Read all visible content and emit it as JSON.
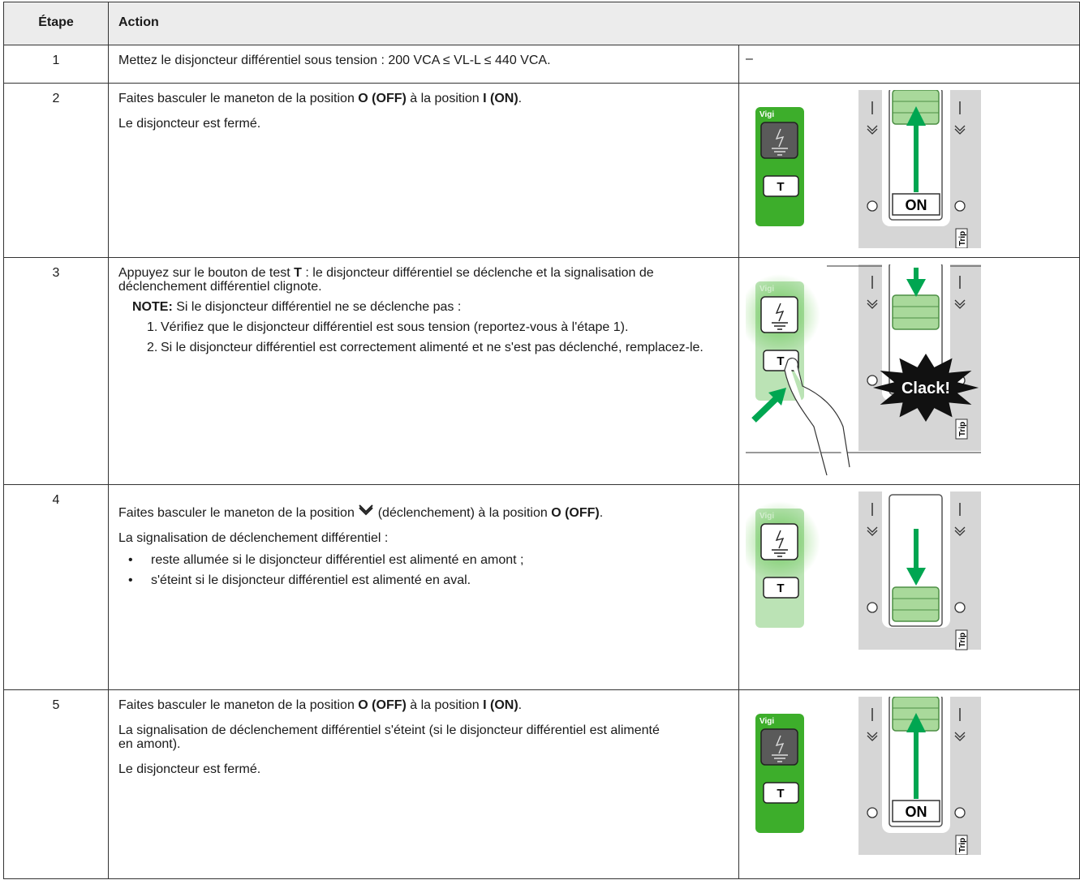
{
  "header": {
    "step": "Étape",
    "action": "Action"
  },
  "rows": [
    {
      "step": "1",
      "paragraphs": [
        [
          "Mettez le disjoncteur différentiel sous tension : 200 VCA ≤  VL-L ≤  440 VCA."
        ]
      ],
      "figure": {
        "text": "–"
      }
    },
    {
      "step": "2",
      "paragraphs": [
        [
          "Faites basculer le maneton de la position ",
          "O (OFF)",
          " à la position ",
          "I (ON)",
          "."
        ],
        [
          "Le disjoncteur est fermé."
        ]
      ],
      "figure": {
        "module": "Vigi",
        "button": "T",
        "handle": "ON",
        "trip": "Trip"
      }
    },
    {
      "step": "3",
      "paragraphs": [
        [
          "Appuyez sur le bouton de test ",
          "T",
          " : le disjoncteur différentiel se déclenche et la signalisation de déclenchement différentiel clignote."
        ]
      ],
      "note": {
        "label": "NOTE:",
        "text": " Si le disjoncteur différentiel ne se déclenche pas :",
        "items": [
          {
            "number": "1.",
            "text": "Vérifiez que le disjoncteur différentiel est sous tension (reportez-vous à l'étape 1)."
          },
          {
            "number": "2.",
            "text": "Si le disjoncteur différentiel est correctement alimenté et ne s'est pas déclenché, remplacez-le."
          }
        ]
      },
      "figure": {
        "module": "Vigi",
        "button": "T",
        "trip": "Trip",
        "sound": "Clack!"
      }
    },
    {
      "step": "4",
      "paragraphs": [
        [
          "Faites basculer le maneton de la position ",
          " (déclenchement) à la position ",
          "O (OFF)",
          "."
        ],
        [
          "La signalisation de déclenchement différentiel :"
        ]
      ],
      "bullets": [
        {
          "bullet": "•",
          "text": "reste allumée si le disjoncteur différentiel est alimenté en amont ;"
        },
        {
          "bullet": "•",
          "text": "s'éteint si le disjoncteur différentiel est alimenté en aval."
        }
      ],
      "figure": {
        "module": "Vigi",
        "button": "T",
        "trip": "Trip"
      }
    },
    {
      "step": "5",
      "paragraphs": [
        [
          "Faites basculer le maneton de la position ",
          "O (OFF)",
          " à la position ",
          "I (ON)",
          "."
        ],
        [
          "La signalisation de déclenchement différentiel s'éteint (si le disjoncteur différentiel est alimenté en amont)."
        ],
        [
          "Le disjoncteur est fermé."
        ]
      ],
      "figure": {
        "module": "Vigi",
        "button": "T",
        "handle": "ON",
        "trip": "Trip"
      }
    }
  ]
}
